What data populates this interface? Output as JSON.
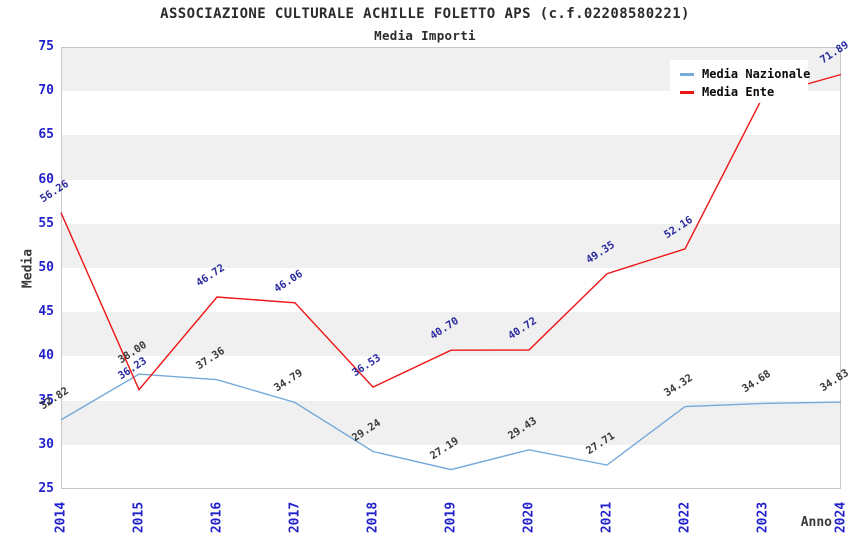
{
  "header": {
    "title": "ASSOCIAZIONE CULTURALE ACHILLE FOLETTO APS (c.f.02208580221)",
    "subtitle": "Media Importi"
  },
  "chart_data": {
    "type": "line",
    "title": "ASSOCIAZIONE CULTURALE ACHILLE FOLETTO APS (c.f.02208580221)",
    "subtitle": "Media Importi",
    "xlabel": "Anno",
    "ylabel": "Media",
    "x": [
      "2014",
      "2015",
      "2016",
      "2017",
      "2018",
      "2019",
      "2020",
      "2021",
      "2022",
      "2023",
      "2024"
    ],
    "ylim": [
      25,
      75
    ],
    "ytick_step": 5,
    "yticks": [
      25,
      30,
      35,
      40,
      45,
      50,
      55,
      60,
      65,
      70,
      75
    ],
    "grid": "alternating horizontal gray/white bands every 5 units, gray topmost (70-75)",
    "legend": {
      "position": "top-right",
      "entries": [
        "Media Nazionale",
        "Media Ente"
      ]
    },
    "series": [
      {
        "name": "Media Nazionale",
        "color": "#76aadb",
        "label_color": "#3a3a3a",
        "values": [
          32.82,
          38.0,
          37.36,
          34.79,
          29.24,
          27.19,
          29.43,
          27.71,
          34.32,
          34.68,
          34.83
        ],
        "labels": [
          "32.82",
          "38.00",
          "37.36",
          "34.79",
          "29.24",
          "27.19",
          "29.43",
          "27.71",
          "34.32",
          "34.68",
          "34.83"
        ]
      },
      {
        "name": "Media Ente",
        "color": "#ee1515",
        "label_color": "#2b2ba0",
        "values": [
          56.26,
          36.23,
          46.72,
          46.06,
          36.53,
          40.7,
          40.72,
          49.35,
          52.16,
          69.4,
          71.89
        ],
        "labels": [
          "56.26",
          "36.23",
          "46.72",
          "46.06",
          "36.53",
          "40.70",
          "40.72",
          "49.35",
          "52.16",
          null,
          "71.89"
        ],
        "label_hidden_at": "2023"
      }
    ],
    "colors": {
      "axis_tick_label": "#2222cc",
      "axis_title": "#3a3a3a",
      "band_gray": "#f0f0f0",
      "plot_border": "#c6c6c6",
      "background": "#ffffff",
      "legend_background": "#ffffff"
    }
  }
}
